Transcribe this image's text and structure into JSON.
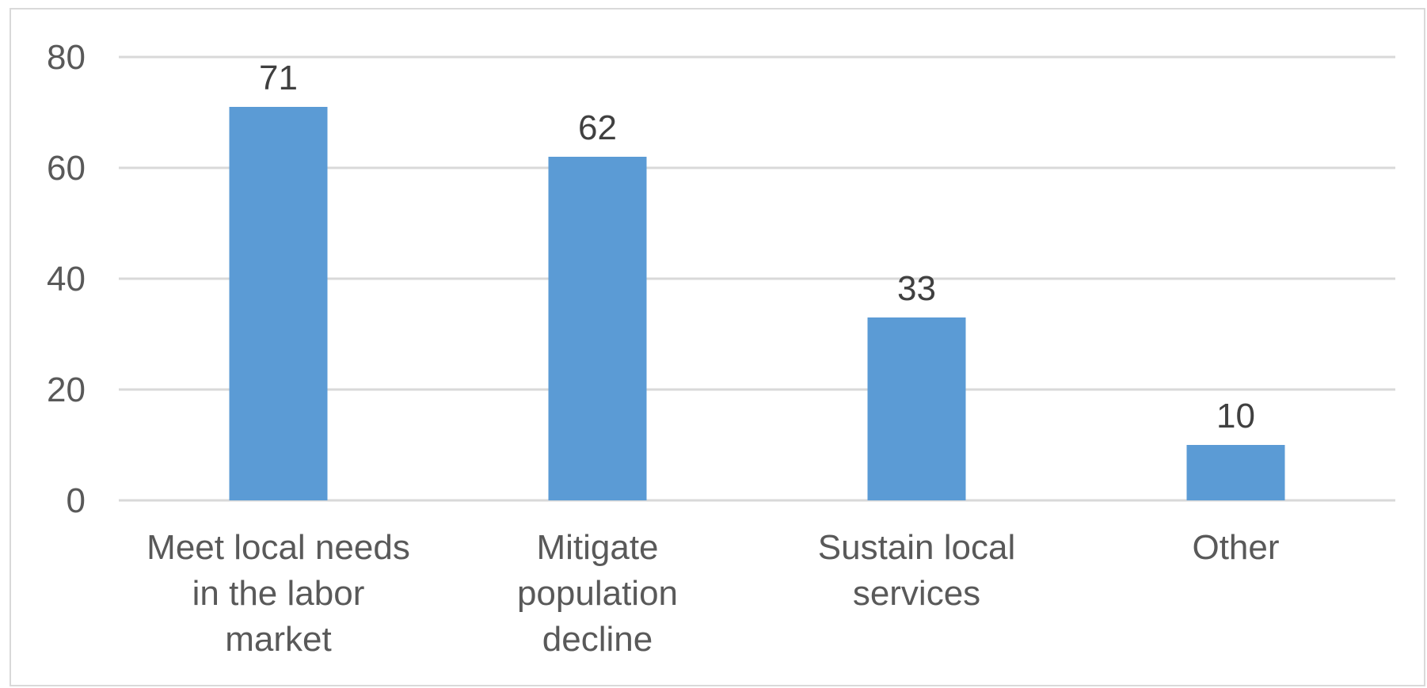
{
  "chart_data": {
    "type": "bar",
    "categories": [
      [
        "Meet local needs",
        "in the labor",
        "market"
      ],
      [
        "Mitigate",
        "population",
        "decline"
      ],
      [
        "Sustain local",
        "services"
      ],
      [
        "Other"
      ]
    ],
    "values": [
      71,
      62,
      33,
      10
    ],
    "data_labels": [
      "71",
      "62",
      "33",
      "10"
    ],
    "y_ticks": [
      "0",
      "20",
      "40",
      "60",
      "80"
    ],
    "ylim": [
      0,
      80
    ],
    "grid": true,
    "bar_color": "#5b9bd5",
    "title": "",
    "xlabel": "",
    "ylabel": ""
  }
}
